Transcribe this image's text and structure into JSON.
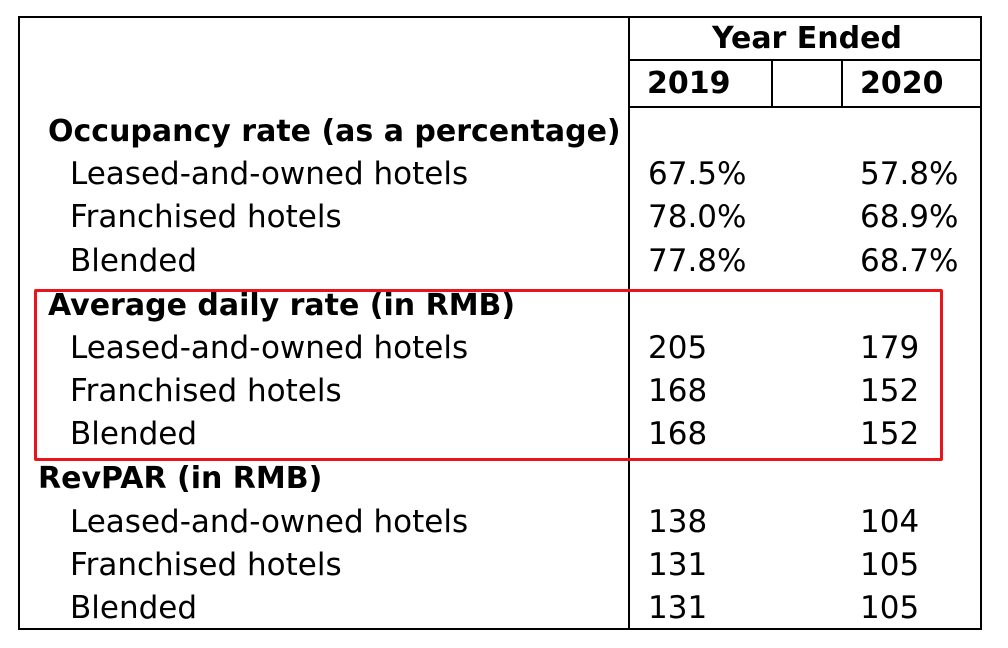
{
  "header": {
    "group_label": "Year Ended",
    "years": [
      "2019",
      "2020"
    ]
  },
  "sections": [
    {
      "title": "Occupancy rate (as a percentage)",
      "rows": [
        {
          "label": "Leased-and-owned hotels",
          "v2019": "67.5%",
          "v2020": "57.8%"
        },
        {
          "label": "Franchised hotels",
          "v2019": "78.0%",
          "v2020": "68.9%"
        },
        {
          "label": "Blended",
          "v2019": "77.8%",
          "v2020": "68.7%"
        }
      ]
    },
    {
      "title": "Average daily rate (in RMB)",
      "highlighted": true,
      "rows": [
        {
          "label": "Leased-and-owned hotels",
          "v2019": "205",
          "v2020": "179"
        },
        {
          "label": "Franchised hotels",
          "v2019": "168",
          "v2020": "152"
        },
        {
          "label": "Blended",
          "v2019": "168",
          "v2020": "152"
        }
      ]
    },
    {
      "title": "RevPAR (in RMB)",
      "rows": [
        {
          "label": "Leased-and-owned hotels",
          "v2019": "138",
          "v2020": "104"
        },
        {
          "label": "Franchised hotels",
          "v2019": "131",
          "v2020": "105"
        },
        {
          "label": "Blended",
          "v2019": "131",
          "v2020": "105"
        }
      ]
    }
  ],
  "highlight_color": "#e8161b"
}
